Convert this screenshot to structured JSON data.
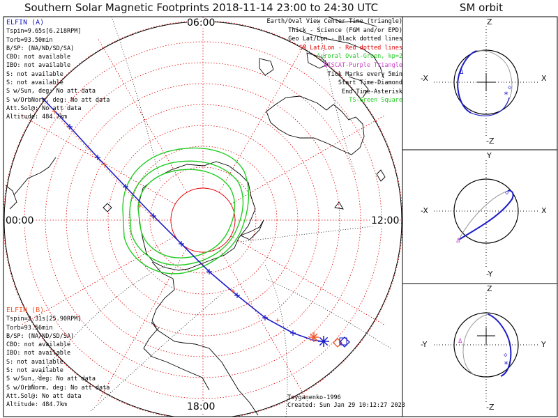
{
  "title": "Southern Solar Magnetic Footprints 2018-11-14 23:00 to 24:30 UTC",
  "orbit_title": "SM orbit",
  "mlt_labels": {
    "top": "06:00",
    "left": "00:00",
    "right": "12:00",
    "bottom": "18:00"
  },
  "elfin_a": {
    "name": "ELFIN (A)",
    "color": "#1c1cc8",
    "lines": [
      "Tspin=9.65s[6.218RPM]",
      "Torb=93.50min",
      "B/SP: (NA/ND/SD/SA)",
      "CBO: not available",
      "IBO: not available",
      "S: not available",
      "S: not available",
      "S w/Sun, deg: No att data",
      "S w/OrbNorm, deg: No att data",
      "Att.Sol@: No att data",
      "Altitude: 484.7km"
    ]
  },
  "elfin_b": {
    "name": "ELFIN (B)",
    "color": "#f0592c",
    "lines": [
      "Tspin=2.31s[25.90RPM]",
      "Torb=93.56min",
      "B/SP: (NA/ND/SD/SA)",
      "CBO: not available",
      "IBO: not available",
      "S: not available",
      "S: not available",
      "S w/Sun, deg: No att data",
      "S w/OrbNorm, deg: No att data",
      "Att.Sol@: No att data",
      "Altitude: 484.7km"
    ]
  },
  "legend": [
    {
      "text": "Earth/Oval View Center Time (triangle)",
      "color": "#000000"
    },
    {
      "text": "Thick - Science (FGM and/or EPD)",
      "color": "#000000"
    },
    {
      "text": "Geo Lat/Lon - Black dotted lines",
      "color": "#000000"
    },
    {
      "text": "SM Lat/Lon - Red dotted lines",
      "color": "#e00000"
    },
    {
      "text": "Auroral Oval-Green, kp=2",
      "color": "#22cc22"
    },
    {
      "text": "EISCAT-Purple Triangle",
      "color": "#cc44cc"
    },
    {
      "text": "Tick Marks every 5min",
      "color": "#000000"
    },
    {
      "text": "Start Time-Diamond",
      "color": "#000000"
    },
    {
      "text": "End Time-Asterisk",
      "color": "#000000"
    },
    {
      "text": "TS-Green Square",
      "color": "#22cc22"
    }
  ],
  "credit": [
    "Tsyganenko-1996",
    "Created: Sun Jan 29 10:12:27 2023"
  ],
  "orbit_panels": [
    {
      "top": "Z",
      "bottom": "-Z",
      "left": "-X",
      "right": "X"
    },
    {
      "top": "Y",
      "bottom": "-Y",
      "left": "-X",
      "right": "X"
    },
    {
      "top": "Z",
      "bottom": "-Z",
      "left": "-Y",
      "right": "Y"
    }
  ],
  "colors": {
    "sm_grid": "#e00000",
    "oval": "#22cc22",
    "track_a": "#1c1cc8",
    "track_b": "#f0592c",
    "coast": "#000000"
  }
}
